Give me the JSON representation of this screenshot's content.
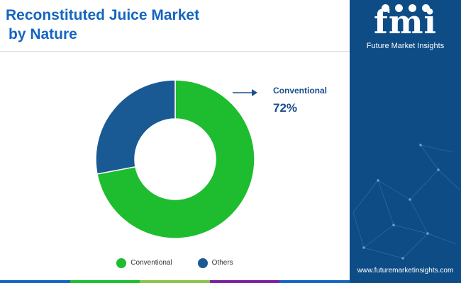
{
  "header": {
    "title_line1": "Reconstituted Juice Market",
    "title_line2": "by Nature"
  },
  "brand": {
    "wordmark": "fmi",
    "name": "Future Market Insights",
    "website": "www.futuremarketinsights.com"
  },
  "chart_data": {
    "type": "pie",
    "donut": true,
    "slices": [
      {
        "label": "Conventional",
        "value": 72,
        "color": "#1ebc2f"
      },
      {
        "label": "Others",
        "value": 28,
        "color": "#1a5a94"
      }
    ],
    "callout": {
      "label": "Conventional",
      "value": "72%"
    },
    "legend": [
      {
        "label": "Conventional",
        "color": "#1ebc2f"
      },
      {
        "label": "Others",
        "color": "#1a5a94"
      }
    ],
    "legend_placement": "bottom"
  },
  "colors": {
    "title": "#1565c0",
    "sidebar": "#0e4c86",
    "callout": "#1a4f8b",
    "bottom_bar": [
      "#1565c0",
      "#1ebc2f",
      "#8bc34a",
      "#7b1fa2",
      "#1565c0"
    ]
  }
}
